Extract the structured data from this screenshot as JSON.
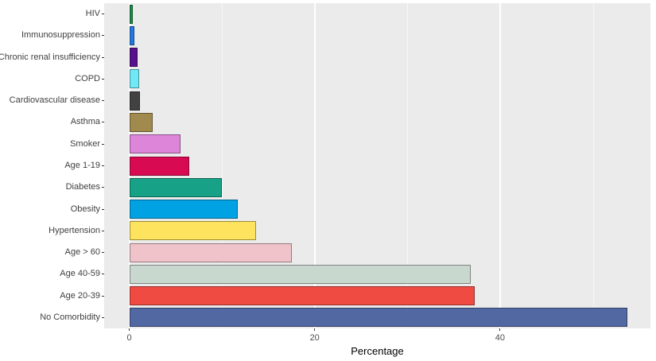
{
  "figure": {
    "xlabel": "Percentage"
  },
  "chart_data": {
    "type": "bar",
    "orientation": "horizontal",
    "title": "",
    "xlabel": "Percentage",
    "ylabel": "",
    "legend_position": "none",
    "grid": "on",
    "x_ticks": [
      0,
      20,
      40
    ],
    "x_minor_gridlines": [
      10,
      30,
      50
    ],
    "xlim": [
      -2.8,
      56.4
    ],
    "panel_background": "#ebebeb",
    "gridline_color": "#ffffff",
    "categories": [
      "HIV",
      "Immunosuppression",
      "Chronic renal insufficiency",
      "COPD",
      "Cardiovascular disease",
      "Asthma",
      "Smoker",
      "Age 1-19",
      "Diabetes",
      "Obesity",
      "Hypertension",
      "Age > 60",
      "Age 40-59",
      "Age 20-39",
      "No Comorbidity"
    ],
    "values": [
      0.4,
      0.6,
      0.9,
      1.1,
      1.2,
      2.5,
      5.5,
      6.5,
      10.0,
      11.7,
      13.7,
      17.5,
      36.8,
      37.3,
      53.7
    ],
    "colors": [
      "#1e8c45",
      "#2278dd",
      "#55128b",
      "#70e8f5",
      "#424242",
      "#a18a4d",
      "#dd85d8",
      "#d80b52",
      "#17a287",
      "#00a2e3",
      "#fde35e",
      "#f0c3cb",
      "#c8d8cf",
      "#ef4b43",
      "#5268a3"
    ]
  }
}
